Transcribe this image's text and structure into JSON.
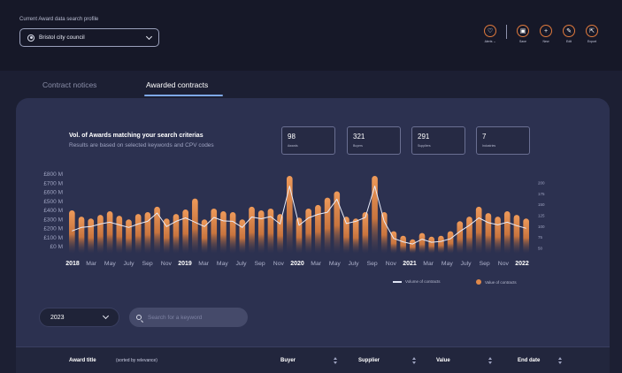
{
  "header": {
    "profile_label": "Current Award data search profile",
    "profile_value": "Bristol city council",
    "actions": [
      {
        "label": "Alerts ⌄",
        "icon": "bell-icon",
        "glyph": "♡"
      },
      {
        "label": "Save",
        "icon": "save-icon",
        "glyph": "▣"
      },
      {
        "label": "New",
        "icon": "plus-icon",
        "glyph": "+"
      },
      {
        "label": "Edit",
        "icon": "pencil-icon",
        "glyph": "✎"
      },
      {
        "label": "Export",
        "icon": "export-icon",
        "glyph": "⇱"
      }
    ]
  },
  "tabs": [
    {
      "label": "Contract notices",
      "active": false
    },
    {
      "label": "Awarded contracts",
      "active": true
    }
  ],
  "summary": {
    "title": "Vol. of Awards matching your search criterias",
    "subtitle": "Results are based on selected keywords and CPV codes"
  },
  "stats": [
    {
      "value": "98",
      "caption": "Awards"
    },
    {
      "value": "321",
      "caption": "Buyers"
    },
    {
      "value": "291",
      "caption": "Suppliers"
    },
    {
      "value": "7",
      "caption": "Industries"
    }
  ],
  "chart_data": {
    "type": "bar",
    "left_axis_ticks": [
      "£800 M",
      "£700 M",
      "£600 M",
      "£500 M",
      "£400 M",
      "£300 M",
      "£200 M",
      "£100 M",
      "£0 M"
    ],
    "right_axis_ticks": [
      "200",
      "175",
      "150",
      "125",
      "100",
      "75",
      "50"
    ],
    "x_labels": [
      {
        "text": "2018",
        "bold": true
      },
      {
        "text": "Mar",
        "bold": false
      },
      {
        "text": "May",
        "bold": false
      },
      {
        "text": "July",
        "bold": false
      },
      {
        "text": "Sep",
        "bold": false
      },
      {
        "text": "Nov",
        "bold": false
      },
      {
        "text": "2019",
        "bold": true
      },
      {
        "text": "Mar",
        "bold": false
      },
      {
        "text": "May",
        "bold": false
      },
      {
        "text": "July",
        "bold": false
      },
      {
        "text": "Sep",
        "bold": false
      },
      {
        "text": "Nov",
        "bold": false
      },
      {
        "text": "2020",
        "bold": true
      },
      {
        "text": "Mar",
        "bold": false
      },
      {
        "text": "May",
        "bold": false
      },
      {
        "text": "July",
        "bold": false
      },
      {
        "text": "Sep",
        "bold": false
      },
      {
        "text": "Nov",
        "bold": false
      },
      {
        "text": "2021",
        "bold": true
      },
      {
        "text": "Mar",
        "bold": false
      },
      {
        "text": "May",
        "bold": false
      },
      {
        "text": "July",
        "bold": false
      },
      {
        "text": "Sep",
        "bold": false
      },
      {
        "text": "Nov",
        "bold": false
      },
      {
        "text": "2022",
        "bold": true
      }
    ],
    "left_range": [
      0,
      800
    ],
    "right_range": [
      50,
      200
    ],
    "series": [
      {
        "name": "Value of contracts",
        "kind": "bar",
        "values": [
          400,
          330,
          310,
          350,
          390,
          340,
          300,
          360,
          380,
          440,
          310,
          360,
          410,
          530,
          300,
          420,
          390,
          380,
          300,
          440,
          400,
          420,
          360,
          780,
          320,
          420,
          460,
          540,
          610,
          330,
          310,
          380,
          780,
          380,
          170,
          120,
          80,
          150,
          110,
          120,
          170,
          280,
          330,
          440,
          370,
          330,
          390,
          350,
          310
        ]
      },
      {
        "name": "Volume of contracts",
        "kind": "line",
        "values": [
          90,
          98,
          100,
          106,
          110,
          104,
          98,
          106,
          112,
          131,
          100,
          112,
          120,
          110,
          100,
          121,
          113,
          112,
          98,
          122,
          118,
          123,
          106,
          193,
          103,
          120,
          128,
          133,
          163,
          107,
          112,
          121,
          193,
          112,
          73,
          65,
          60,
          71,
          64,
          66,
          72,
          89,
          103,
          120,
          109,
          104,
          110,
          102,
          96
        ]
      }
    ],
    "legend_position": "bottom-right"
  },
  "filters": {
    "year": "2023",
    "search_placeholder": "Search for a keyword"
  },
  "table": {
    "columns": [
      "Award title",
      "Buyer",
      "Supplier",
      "Value",
      "End date"
    ],
    "sort_note": "(sorted by relevance)"
  },
  "colors": {
    "accent": "#e07a3c",
    "tab_underline": "#7ea8e6",
    "panel": "#2c3150"
  }
}
